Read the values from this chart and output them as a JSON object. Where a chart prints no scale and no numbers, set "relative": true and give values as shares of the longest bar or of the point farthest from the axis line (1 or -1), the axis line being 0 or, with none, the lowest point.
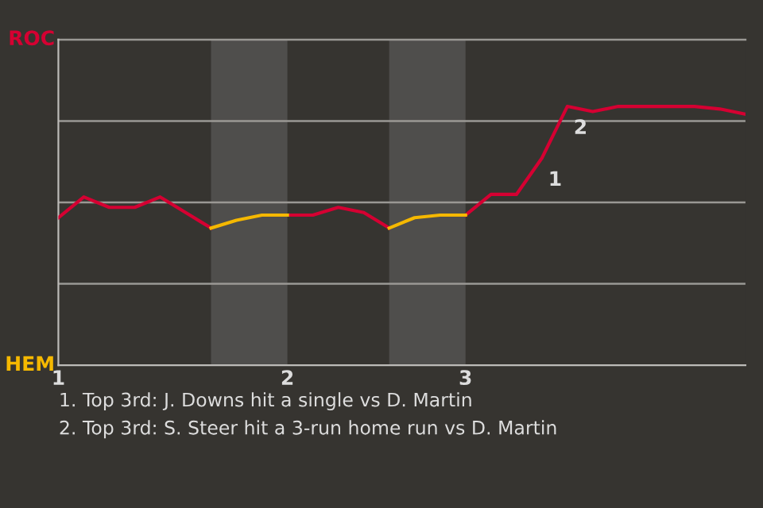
{
  "chart_data": {
    "type": "line",
    "relative": true,
    "categories": [
      "1",
      null,
      null,
      null,
      null,
      null,
      null,
      null,
      null,
      "2",
      null,
      null,
      null,
      null,
      null,
      null,
      "3",
      null,
      null,
      null,
      null,
      null,
      null,
      null,
      null,
      null,
      null,
      null
    ],
    "series": [
      {
        "name": "ROC",
        "color": "#d50032",
        "values": [
          0.57,
          0.65,
          0.61,
          0.61,
          0.65,
          0.59,
          0.53,
          null,
          null,
          0.58,
          0.58,
          0.61,
          0.59,
          0.53,
          null,
          null,
          0.58,
          0.66,
          0.66,
          0.8,
          1,
          0.98,
          1,
          1,
          1,
          1,
          0.99,
          0.97
        ]
      },
      {
        "name": "HEM",
        "color": "#f5b800",
        "values": [
          null,
          null,
          null,
          null,
          null,
          null,
          0.53,
          0.56,
          0.58,
          0.58,
          null,
          null,
          null,
          0.53,
          0.57,
          0.58,
          0.58,
          null,
          null,
          null,
          null,
          null,
          null,
          null,
          null,
          null,
          null,
          null
        ]
      }
    ],
    "grid": "y",
    "annotations": [
      "1",
      "2",
      "1. Top 3rd: J. Downs hit a single vs D. Martin",
      "2. Top 3rd: S. Steer hit a 3-run home run vs D. Martin"
    ],
    "legend": "left",
    "marker": "none",
    "line_style": "solid"
  }
}
